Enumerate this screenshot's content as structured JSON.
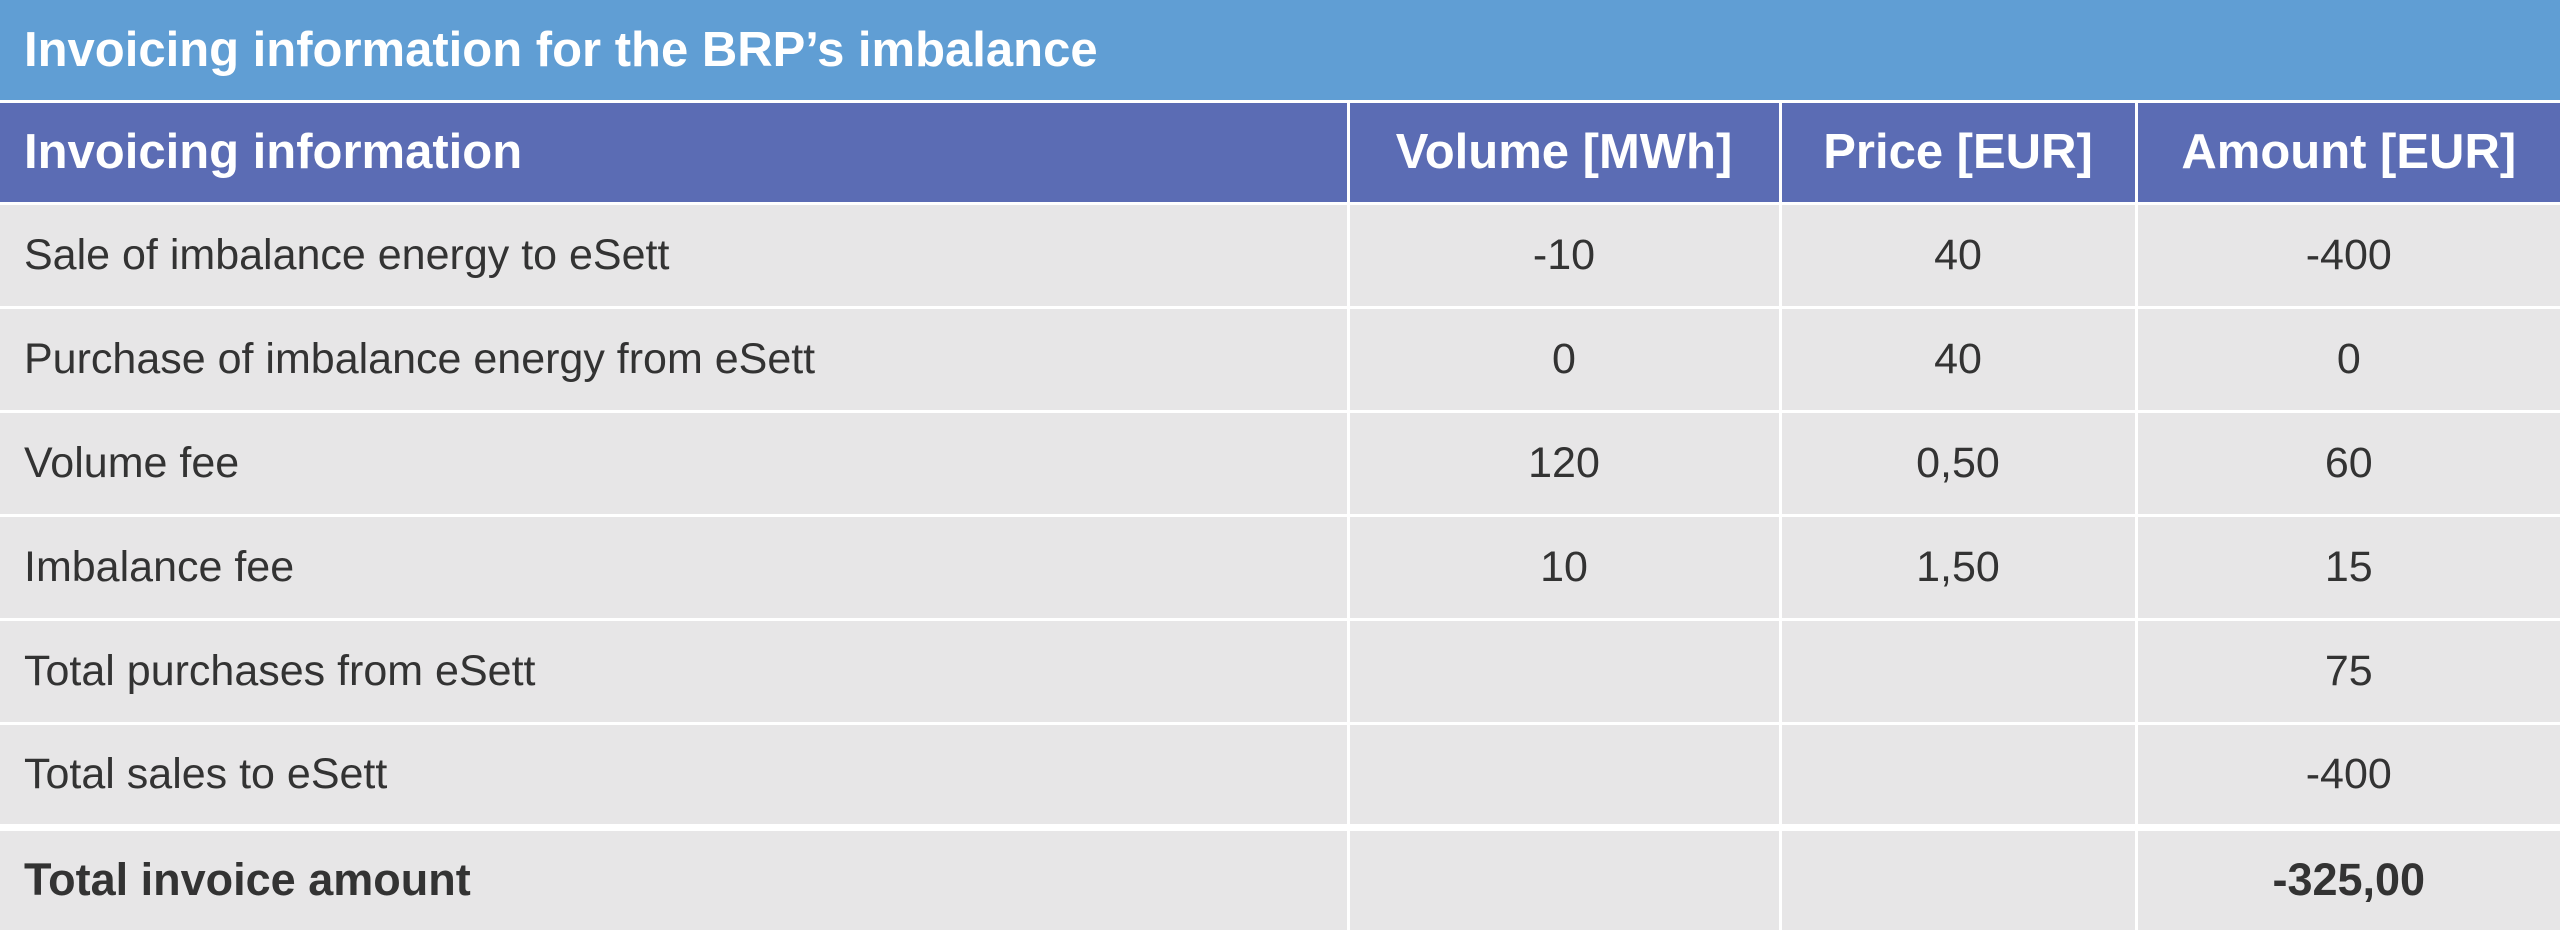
{
  "title": "Invoicing information for the BRP’s imbalance",
  "headers": {
    "description": "Invoicing information",
    "volume": "Volume [MWh]",
    "price": "Price [EUR]",
    "amount": "Amount [EUR]"
  },
  "rows": [
    {
      "description": "Sale of imbalance energy to eSett",
      "volume": "-10",
      "price": "40",
      "amount": "-400"
    },
    {
      "description": "Purchase of imbalance energy from eSett",
      "volume": "0",
      "price": "40",
      "amount": "0"
    },
    {
      "description": "Volume fee",
      "volume": "120",
      "price": "0,50",
      "amount": "60"
    },
    {
      "description": "Imbalance fee",
      "volume": "10",
      "price": "1,50",
      "amount": "15"
    },
    {
      "description": "Total purchases from eSett",
      "volume": "",
      "price": "",
      "amount": "75"
    },
    {
      "description": "Total sales to eSett",
      "volume": "",
      "price": "",
      "amount": "-400"
    }
  ],
  "total": {
    "description": "Total invoice amount",
    "volume": "",
    "price": "",
    "amount": "-325,00"
  }
}
